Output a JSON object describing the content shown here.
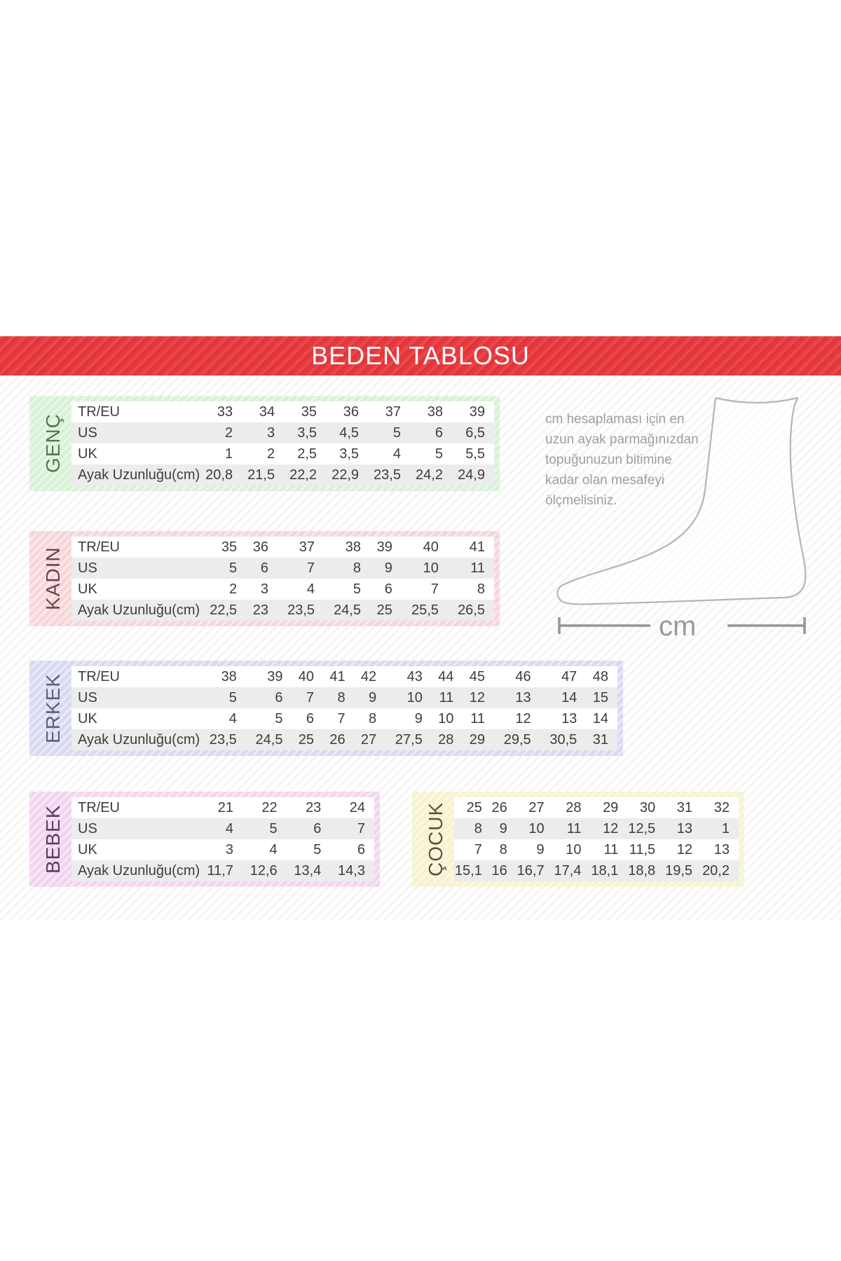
{
  "page": {
    "title": "BEDEN TABLOSU"
  },
  "instruction": {
    "lines": [
      "cm hesaplaması için en",
      "uzun ayak parmağınızdan",
      "topuğunuzun bitimine",
      "kadar olan mesafeyi",
      "ölçmelisiniz."
    ]
  },
  "foot_diagram": {
    "unit_label": "cm"
  },
  "colors": {
    "band_red": "#e8383d",
    "table_text": "#3d3d3d",
    "row_stripe_gray": "#ececec",
    "instruction_gray": "#9e9e9e",
    "foot_outline_gray": "#b5b5b5"
  },
  "chart_data": [
    {
      "type": "table",
      "title": "GENÇ",
      "row_headers": [
        "TR/EU",
        "US",
        "UK",
        "Ayak Uzunluğu(cm)"
      ],
      "rows": [
        [
          "33",
          "34",
          "35",
          "36",
          "37",
          "38",
          "39"
        ],
        [
          "2",
          "3",
          "3,5",
          "4,5",
          "5",
          "6",
          "6,5"
        ],
        [
          "1",
          "2",
          "2,5",
          "3,5",
          "4",
          "5",
          "5,5"
        ],
        [
          "20,8",
          "21,5",
          "22,2",
          "22,9",
          "23,5",
          "24,2",
          "24,9"
        ]
      ]
    },
    {
      "type": "table",
      "title": "KADIN",
      "row_headers": [
        "TR/EU",
        "US",
        "UK",
        "Ayak Uzunluğu(cm)"
      ],
      "rows": [
        [
          "35",
          "36",
          "37",
          "38",
          "39",
          "40",
          "41"
        ],
        [
          "5",
          "6",
          "7",
          "8",
          "9",
          "10",
          "11"
        ],
        [
          "2",
          "3",
          "4",
          "5",
          "6",
          "7",
          "8"
        ],
        [
          "22,5",
          "23",
          "23,5",
          "24,5",
          "25",
          "25,5",
          "26,5"
        ]
      ]
    },
    {
      "type": "table",
      "title": "ERKEK",
      "row_headers": [
        "TR/EU",
        "US",
        "UK",
        "Ayak Uzunluğu(cm)"
      ],
      "rows": [
        [
          "38",
          "39",
          "40",
          "41",
          "42",
          "43",
          "44",
          "45",
          "46",
          "47",
          "48"
        ],
        [
          "5",
          "6",
          "7",
          "8",
          "9",
          "10",
          "11",
          "12",
          "13",
          "14",
          "15"
        ],
        [
          "4",
          "5",
          "6",
          "7",
          "8",
          "9",
          "10",
          "11",
          "12",
          "13",
          "14"
        ],
        [
          "23,5",
          "24,5",
          "25",
          "26",
          "27",
          "27,5",
          "28",
          "29",
          "29,5",
          "30,5",
          "31"
        ]
      ]
    },
    {
      "type": "table",
      "title": "BEBEK",
      "row_headers": [
        "TR/EU",
        "US",
        "UK",
        "Ayak Uzunluğu(cm)"
      ],
      "rows": [
        [
          "21",
          "22",
          "23",
          "24"
        ],
        [
          "4",
          "5",
          "6",
          "7"
        ],
        [
          "3",
          "4",
          "5",
          "6"
        ],
        [
          "11,7",
          "12,6",
          "13,4",
          "14,3"
        ]
      ]
    },
    {
      "type": "table",
      "title": "ÇOCUK",
      "row_headers": [],
      "rows": [
        [
          "25",
          "26",
          "27",
          "28",
          "29",
          "30",
          "31",
          "32"
        ],
        [
          "8",
          "9",
          "10",
          "11",
          "12",
          "12,5",
          "13",
          "1"
        ],
        [
          "7",
          "8",
          "9",
          "10",
          "11",
          "11,5",
          "12",
          "13"
        ],
        [
          "15,1",
          "16",
          "16,7",
          "17,4",
          "18,1",
          "18,8",
          "19,5",
          "20,2"
        ]
      ]
    }
  ],
  "tables": [
    {
      "id": "genc",
      "label": "GENÇ",
      "bg": "#d9f1d7",
      "fg": "#4e7b50",
      "row_headers": [
        "TR/EU",
        "US",
        "UK",
        "Ayak Uzunluğu(cm)"
      ],
      "rows": [
        [
          "33",
          "34",
          "35",
          "36",
          "37",
          "38",
          "39"
        ],
        [
          "2",
          "3",
          "3,5",
          "4,5",
          "5",
          "6",
          "6,5"
        ],
        [
          "1",
          "2",
          "2,5",
          "3,5",
          "4",
          "5",
          "5,5"
        ],
        [
          "20,8",
          "21,5",
          "22,2",
          "22,9",
          "23,5",
          "24,2",
          "24,9"
        ]
      ]
    },
    {
      "id": "kadin",
      "label": "KADIN",
      "bg": "#f6d6d9",
      "fg": "#69464b",
      "row_headers": [
        "TR/EU",
        "US",
        "UK",
        "Ayak Uzunluğu(cm)"
      ],
      "rows": [
        [
          "35",
          "36",
          "37",
          "38",
          "39",
          "40",
          "41"
        ],
        [
          "5",
          "6",
          "7",
          "8",
          "9",
          "10",
          "11"
        ],
        [
          "2",
          "3",
          "4",
          "5",
          "6",
          "7",
          "8"
        ],
        [
          "22,5",
          "23",
          "23,5",
          "24,5",
          "25",
          "25,5",
          "26,5"
        ]
      ]
    },
    {
      "id": "erkek",
      "label": "ERKEK",
      "bg": "#d8daf1",
      "fg": "#5a5f7d",
      "row_headers": [
        "TR/EU",
        "US",
        "UK",
        "Ayak Uzunluğu(cm)"
      ],
      "rows": [
        [
          "38",
          "39",
          "40",
          "41",
          "42",
          "43",
          "44",
          "45",
          "46",
          "47",
          "48"
        ],
        [
          "5",
          "6",
          "7",
          "8",
          "9",
          "10",
          "11",
          "12",
          "13",
          "14",
          "15"
        ],
        [
          "4",
          "5",
          "6",
          "7",
          "8",
          "9",
          "10",
          "11",
          "12",
          "13",
          "14"
        ],
        [
          "23,5",
          "24,5",
          "25",
          "26",
          "27",
          "27,5",
          "28",
          "29",
          "29,5",
          "30,5",
          "31"
        ]
      ]
    },
    {
      "id": "bebek",
      "label": "BEBEK",
      "bg": "#f2d4f0",
      "fg": "#5e3c60",
      "row_headers": [
        "TR/EU",
        "US",
        "UK",
        "Ayak Uzunluğu(cm)"
      ],
      "rows": [
        [
          "21",
          "22",
          "23",
          "24"
        ],
        [
          "4",
          "5",
          "6",
          "7"
        ],
        [
          "3",
          "4",
          "5",
          "6"
        ],
        [
          "11,7",
          "12,6",
          "13,4",
          "14,3"
        ]
      ]
    },
    {
      "id": "cocuk",
      "label": "ÇOCUK",
      "bg": "#f6f3cf",
      "fg": "#55543e",
      "row_headers": [],
      "rows": [
        [
          "25",
          "26",
          "27",
          "28",
          "29",
          "30",
          "31",
          "32"
        ],
        [
          "8",
          "9",
          "10",
          "11",
          "12",
          "12,5",
          "13",
          "1"
        ],
        [
          "7",
          "8",
          "9",
          "10",
          "11",
          "11,5",
          "12",
          "13"
        ],
        [
          "15,1",
          "16",
          "16,7",
          "17,4",
          "18,1",
          "18,8",
          "19,5",
          "20,2"
        ]
      ]
    }
  ]
}
